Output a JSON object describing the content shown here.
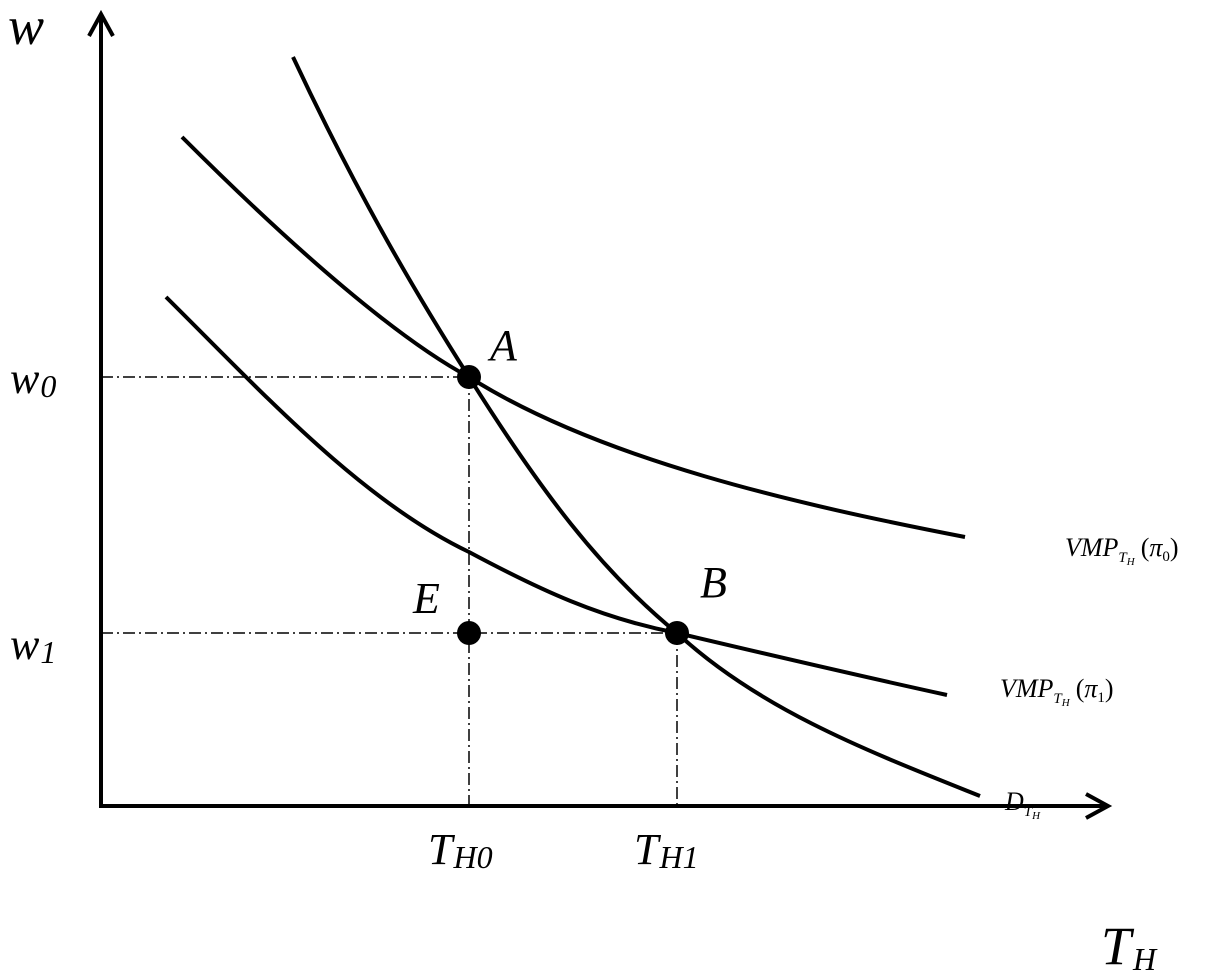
{
  "axes": {
    "y_label": "w",
    "x_label_main": "T",
    "x_label_sub": "H"
  },
  "y_ticks": [
    {
      "main": "w",
      "sub": "0"
    },
    {
      "main": "w",
      "sub": "1"
    }
  ],
  "x_ticks": [
    {
      "main": "T",
      "sub": "H0"
    },
    {
      "main": "T",
      "sub": "H1"
    }
  ],
  "points": {
    "A": "A",
    "B": "B",
    "E": "E"
  },
  "curves": {
    "vmp0": {
      "main": "VMP",
      "sub": "T",
      "subsub": "H",
      "open": "(",
      "greek": "π",
      "greek_sub": "0",
      "close": ")"
    },
    "vmp1": {
      "main": "VMP",
      "sub": "T",
      "subsub": "H",
      "open": "(",
      "greek": "π",
      "greek_sub": "1",
      "close": ")"
    },
    "demand": {
      "main": "D",
      "sub": "T",
      "subsub": "H"
    }
  },
  "colors": {
    "ink": "#000000",
    "background": "#ffffff"
  }
}
